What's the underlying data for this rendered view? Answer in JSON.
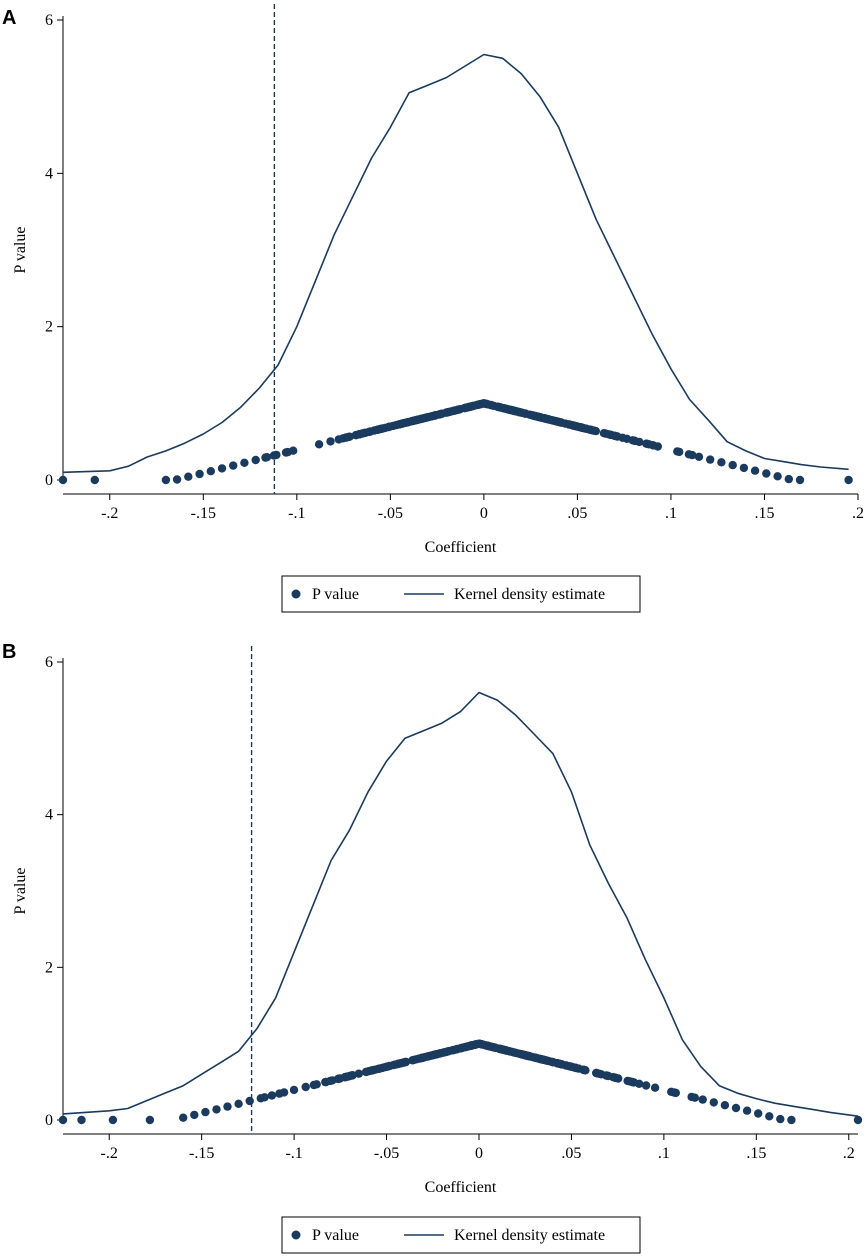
{
  "colors": {
    "series": "#1a3a5e",
    "axis": "#000000",
    "background": "#ffffff"
  },
  "chart_data": [
    {
      "panel": "A",
      "type": "scatter",
      "xlabel": "Coefficient",
      "ylabel": "P value",
      "xlim": [
        -0.225,
        0.2
      ],
      "ylim": [
        0,
        6
      ],
      "xticks": [
        -0.2,
        -0.15,
        -0.1,
        -0.05,
        0,
        0.05,
        0.1,
        0.15,
        0.2
      ],
      "xtick_labels": [
        "-.2",
        "-.15",
        "-.1",
        "-.05",
        "0",
        ".05",
        ".1",
        ".15",
        ".2"
      ],
      "yticks": [
        0,
        2,
        4,
        6
      ],
      "ytick_labels": [
        "0",
        "2",
        "4",
        "6"
      ],
      "legend": [
        "P value",
        "Kernel density estimate"
      ],
      "legend_position": "bottom",
      "reference_line": -0.112,
      "scatter_x_range": [
        -0.17,
        0.17
      ],
      "scatter_outliers": [
        -0.225,
        -0.208,
        0.195
      ],
      "kernel_density": {
        "x": [
          -0.225,
          -0.2,
          -0.19,
          -0.18,
          -0.17,
          -0.16,
          -0.15,
          -0.14,
          -0.13,
          -0.12,
          -0.11,
          -0.1,
          -0.09,
          -0.08,
          -0.07,
          -0.06,
          -0.05,
          -0.04,
          -0.03,
          -0.02,
          -0.01,
          0,
          0.01,
          0.02,
          0.03,
          0.04,
          0.05,
          0.06,
          0.07,
          0.08,
          0.09,
          0.1,
          0.11,
          0.12,
          0.13,
          0.14,
          0.15,
          0.16,
          0.17,
          0.18,
          0.195
        ],
        "y": [
          0.1,
          0.12,
          0.18,
          0.3,
          0.38,
          0.48,
          0.6,
          0.75,
          0.95,
          1.2,
          1.5,
          2.0,
          2.6,
          3.2,
          3.7,
          4.2,
          4.6,
          5.05,
          5.15,
          5.25,
          5.4,
          5.55,
          5.5,
          5.3,
          5.0,
          4.6,
          4.0,
          3.4,
          2.9,
          2.4,
          1.9,
          1.45,
          1.05,
          0.78,
          0.5,
          0.38,
          0.28,
          0.24,
          0.2,
          0.17,
          0.14
        ]
      }
    },
    {
      "panel": "B",
      "type": "scatter",
      "xlabel": "Coefficient",
      "ylabel": "P value",
      "xlim": [
        -0.225,
        0.205
      ],
      "ylim": [
        0,
        6
      ],
      "xticks": [
        -0.2,
        -0.15,
        -0.1,
        -0.05,
        0,
        0.05,
        0.1,
        0.15,
        0.2
      ],
      "xtick_labels": [
        "-.2",
        "-.15",
        "-.1",
        "-.05",
        "0",
        ".05",
        ".1",
        ".15",
        ".2"
      ],
      "yticks": [
        0,
        2,
        4,
        6
      ],
      "ytick_labels": [
        "0",
        "2",
        "4",
        "6"
      ],
      "legend": [
        "P value",
        "Kernel density estimate"
      ],
      "legend_position": "bottom",
      "reference_line": -0.123,
      "scatter_x_range": [
        -0.16,
        0.17
      ],
      "scatter_outliers": [
        -0.225,
        -0.215,
        -0.198,
        -0.178,
        0.205
      ],
      "kernel_density": {
        "x": [
          -0.225,
          -0.2,
          -0.19,
          -0.18,
          -0.17,
          -0.16,
          -0.15,
          -0.14,
          -0.13,
          -0.12,
          -0.11,
          -0.1,
          -0.09,
          -0.08,
          -0.07,
          -0.06,
          -0.05,
          -0.04,
          -0.03,
          -0.02,
          -0.01,
          0,
          0.01,
          0.02,
          0.03,
          0.04,
          0.05,
          0.06,
          0.07,
          0.08,
          0.09,
          0.1,
          0.11,
          0.12,
          0.13,
          0.14,
          0.15,
          0.16,
          0.17,
          0.18,
          0.19,
          0.205
        ],
        "y": [
          0.08,
          0.12,
          0.15,
          0.25,
          0.35,
          0.45,
          0.6,
          0.75,
          0.9,
          1.2,
          1.6,
          2.2,
          2.8,
          3.4,
          3.8,
          4.3,
          4.7,
          5.0,
          5.1,
          5.2,
          5.35,
          5.6,
          5.5,
          5.3,
          5.05,
          4.8,
          4.3,
          3.6,
          3.1,
          2.65,
          2.1,
          1.6,
          1.05,
          0.7,
          0.45,
          0.35,
          0.28,
          0.22,
          0.18,
          0.14,
          0.1,
          0.05
        ]
      }
    }
  ]
}
